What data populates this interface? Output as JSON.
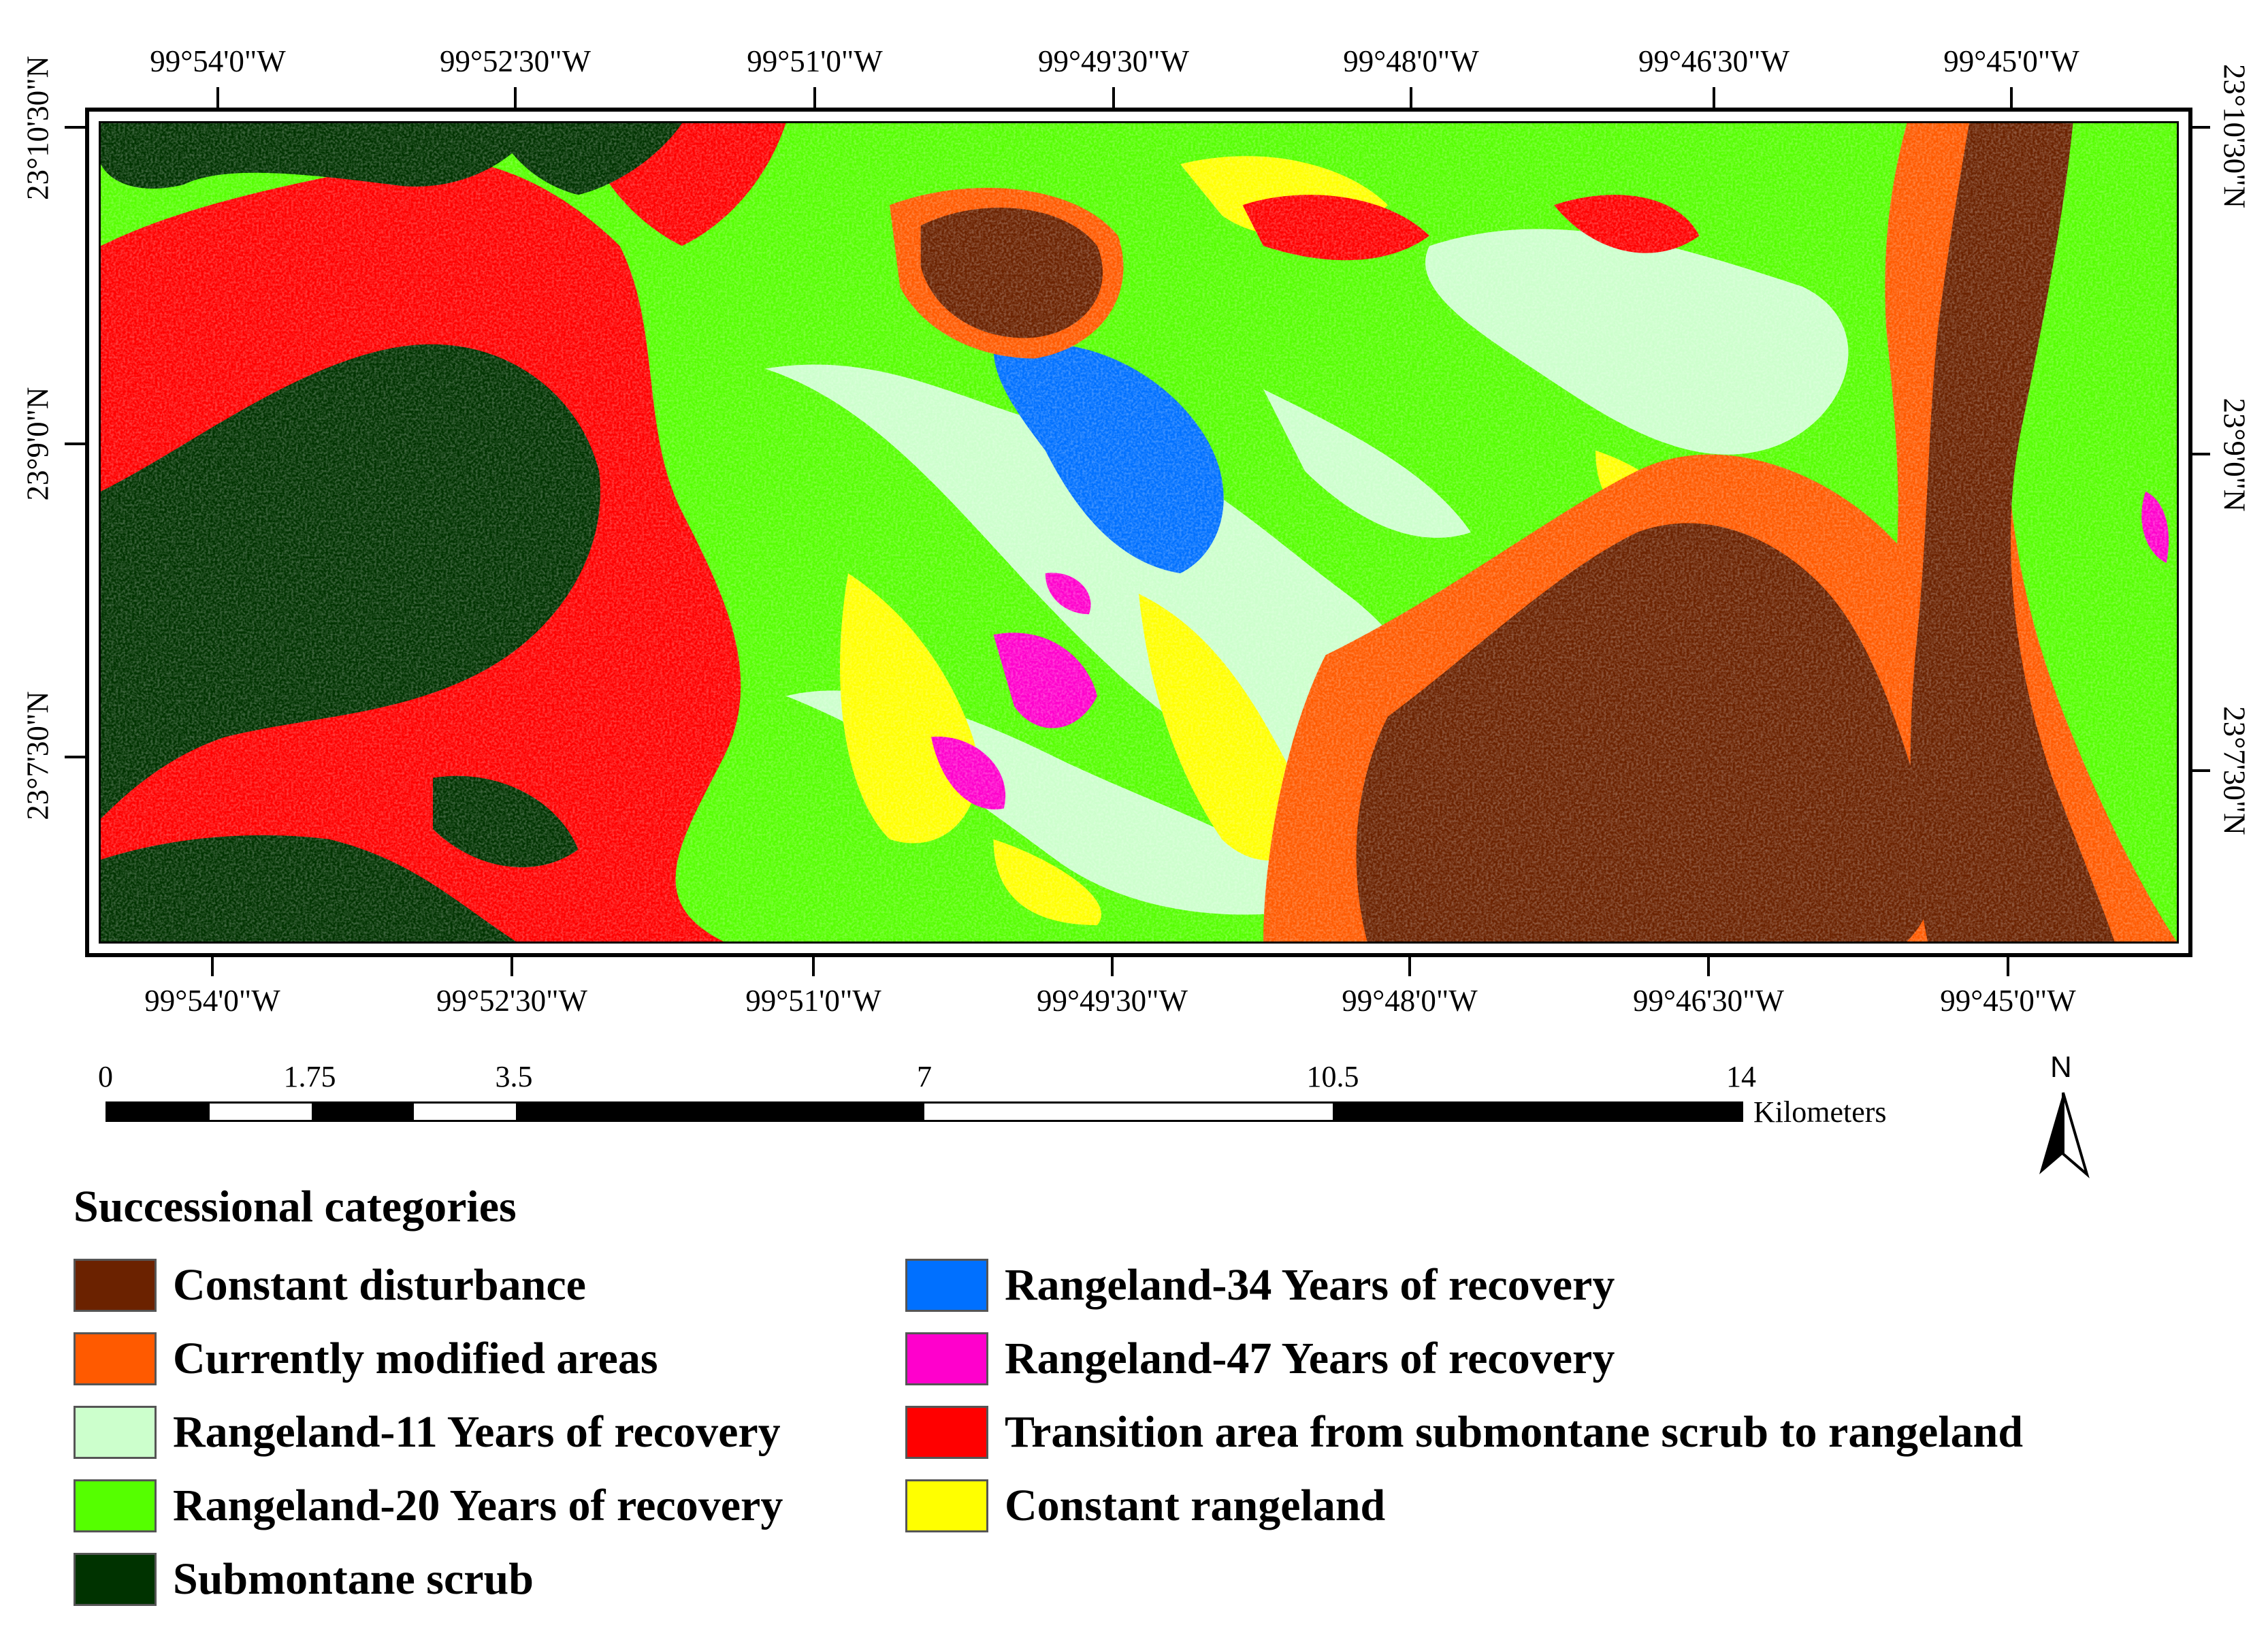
{
  "map": {
    "top_longitudes": [
      "99°54'0\"W",
      "99°52'30\"W",
      "99°51'0\"W",
      "99°49'30\"W",
      "99°48'0\"W",
      "99°46'30\"W",
      "99°45'0\"W"
    ],
    "bottom_longitudes": [
      "99°54'0\"W",
      "99°52'30\"W",
      "99°51'0\"W",
      "99°49'30\"W",
      "99°48'0\"W",
      "99°46'30\"W",
      "99°45'0\"W"
    ],
    "left_latitudes": [
      "23°10'30\"N",
      "23°9'0\"N",
      "23°7'30\"N"
    ],
    "right_latitudes": [
      "23°10'30\"N",
      "23°9'0\"N",
      "23°7'30\"N"
    ]
  },
  "scale": {
    "labels": [
      "0",
      "1.75",
      "3.5",
      "7",
      "10.5",
      "14"
    ],
    "unit": "Kilometers"
  },
  "north_arrow": {
    "label": "N"
  },
  "legend": {
    "title": "Successional categories",
    "items": [
      {
        "label": "Constant disturbance",
        "color": "#6b2200"
      },
      {
        "label": "Currently modified areas",
        "color": "#ff5a00"
      },
      {
        "label": "Rangeland-11 Years of recovery",
        "color": "#ccffcc"
      },
      {
        "label": "Rangeland-20 Years of recovery",
        "color": "#55ff00"
      },
      {
        "label": "Submontane scrub",
        "color": "#003300"
      },
      {
        "label": "Rangeland-34 Years of recovery",
        "color": "#0070ff"
      },
      {
        "label": "Rangeland-47 Years of recovery",
        "color": "#ff00cc"
      },
      {
        "label": "Transition area from submontane scrub to rangeland",
        "color": "#ff0000"
      },
      {
        "label": "Constant rangeland",
        "color": "#ffff00"
      }
    ]
  }
}
